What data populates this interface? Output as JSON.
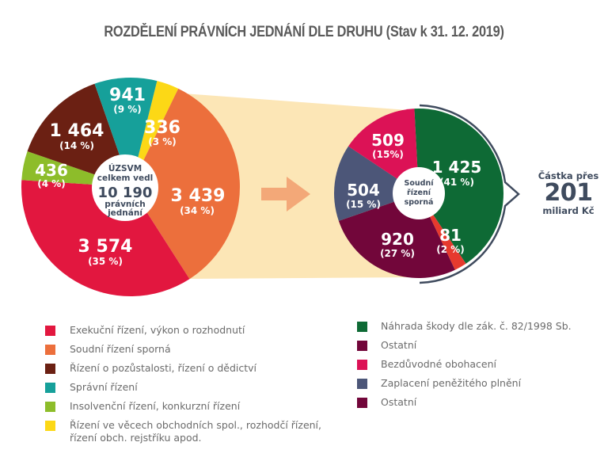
{
  "title": "ROZDĚLENÍ PRÁVNÍCH JEDNÁNÍ DLE DRUHU (Stav k 31. 12. 2019)",
  "chart_data": [
    {
      "type": "pie",
      "title": "ÚZSVM celkem vedl 10 190 právních jednání",
      "total": 10190,
      "center_label": {
        "line1": "ÚZSVM",
        "line2": "celkem vedl",
        "value": "10 190",
        "line3": "právních",
        "line4": "jednání"
      },
      "slices": [
        {
          "name": "Exekuční řízení, výkon o rozhodnutí",
          "value": 3574,
          "value_label": "3 574",
          "percent_label": "(35 %)",
          "color": "#e2173f"
        },
        {
          "name": "Soudní řízení sporná",
          "value": 3439,
          "value_label": "3 439",
          "percent_label": "(34 %)",
          "color": "#ec6f3c"
        },
        {
          "name": "Řízení o pozůstalosti, řízení o dědictví",
          "value": 1464,
          "value_label": "1 464",
          "percent_label": "(14 %)",
          "color": "#6b2013"
        },
        {
          "name": "Správní řízení",
          "value": 941,
          "value_label": "941",
          "percent_label": "(9 %)",
          "color": "#16a09a"
        },
        {
          "name": "Insolvenční řízení, konkurzní řízení",
          "value": 436,
          "value_label": "436",
          "percent_label": "(4 %)",
          "color": "#8dbd2a"
        },
        {
          "name": "Řízení ve věcech obchodních spol., rozhodčí řízení, řízení obch. rejstříku apod.",
          "value": 336,
          "value_label": "336",
          "percent_label": "(3 %)",
          "color": "#fcd816"
        }
      ]
    },
    {
      "type": "pie",
      "title": "Soudní řízení sporná",
      "total": 3439,
      "center_label": {
        "line1": "Soudní",
        "line2": "řízení",
        "line3": "sporná"
      },
      "slices": [
        {
          "name": "Náhrada škody dle zák. č. 82/1998 Sb.",
          "value": 1425,
          "value_label": "1 425",
          "percent_label": "(41 %)",
          "color": "#0e6a35"
        },
        {
          "name": "Ostatní",
          "value": 81,
          "value_label": "81",
          "percent_label": "(2 %)",
          "color": "#e63a2e"
        },
        {
          "name": "Ostatní",
          "value": 920,
          "value_label": "920",
          "percent_label": "(27 %)",
          "color": "#72063a"
        },
        {
          "name": "Zaplacení peněžitého plnění",
          "value": 504,
          "value_label": "504",
          "percent_label": "(15 %)",
          "color": "#4c5678"
        },
        {
          "name": "Bezdůvodné obohacení",
          "value": 509,
          "value_label": "509",
          "percent_label": "(15%)",
          "color": "#dc1256"
        }
      ],
      "annotation": {
        "line1": "Částka přes",
        "value": "201",
        "line2": "miliard Kč"
      }
    }
  ],
  "legend_left": [
    {
      "label": "Exekuční řízení, výkon o rozhodnutí",
      "color": "#e2173f"
    },
    {
      "label": "Soudní řízení sporná",
      "color": "#ec6f3c"
    },
    {
      "label": "Řízení o pozůstalosti, řízení o dědictví",
      "color": "#6b2013"
    },
    {
      "label": "Správní řízení",
      "color": "#16a09a"
    },
    {
      "label": "Insolvenční řízení, konkurzní řízení",
      "color": "#8dbd2a"
    },
    {
      "label": "Řízení ve věcech obchodních spol., rozhodčí řízení,",
      "label2": "řízení obch. rejstříku apod.",
      "color": "#fcd816"
    }
  ],
  "legend_right": [
    {
      "label": "Náhrada škody dle zák. č. 82/1998 Sb.",
      "color": "#0e6a35"
    },
    {
      "label": "Ostatní",
      "color": "#72063a"
    },
    {
      "label": "Bezdůvodné obohacení",
      "color": "#dc1256"
    },
    {
      "label": "Zaplacení peněžitého plnění",
      "color": "#4c5678"
    },
    {
      "label": "Ostatní",
      "color": "#72063a"
    }
  ],
  "colors": {
    "funnel": "#fce6b6",
    "arrow": "#f3a878",
    "bracket": "#3f4b5e",
    "title": "#5a5a5a"
  }
}
